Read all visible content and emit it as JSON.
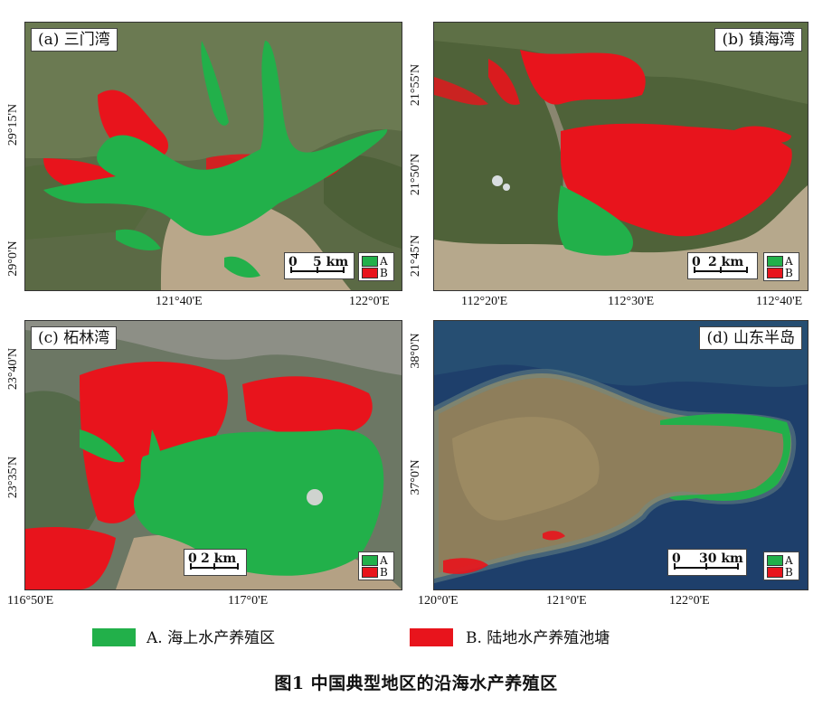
{
  "panels": {
    "a": {
      "title": "(a) 三门湾",
      "scale": "0    5 km",
      "scale_zero": "0",
      "scale_val": "5 km",
      "y_ticks": [
        "29°15'N",
        "29°0'N"
      ],
      "x_ticks": [
        "121°40'E",
        "122°0'E"
      ]
    },
    "b": {
      "title": "(b) 镇海湾",
      "scale_zero": "0",
      "scale_val": "2 km",
      "y_ticks": [
        "21°55'N",
        "21°50'N",
        "21°45'N"
      ],
      "x_ticks": [
        "112°20'E",
        "112°30'E",
        "112°40'E"
      ]
    },
    "c": {
      "title": "(c) 柘林湾",
      "scale_zero": "0",
      "scale_val": "2 km",
      "y_ticks": [
        "23°40'N",
        "23°35'N"
      ],
      "x_ticks": [
        "116°50'E",
        "117°0'E"
      ]
    },
    "d": {
      "title": "(d) 山东半岛",
      "scale_zero": "0",
      "scale_val": "30 km",
      "y_ticks": [
        "38°0'N",
        "37°0'N"
      ],
      "x_ticks": [
        "120°0'E",
        "121°0'E",
        "122°0'E"
      ]
    }
  },
  "mini_legend": {
    "a": "A",
    "b": "B"
  },
  "legend": {
    "a_label": "A.  海上水产养殖区",
    "b_label": "B.  陆地水产养殖池塘"
  },
  "colors": {
    "sea_culture": "#22b04a",
    "land_ponds": "#e8141c"
  },
  "caption": "图1  中国典型地区的沿海水产养殖区"
}
